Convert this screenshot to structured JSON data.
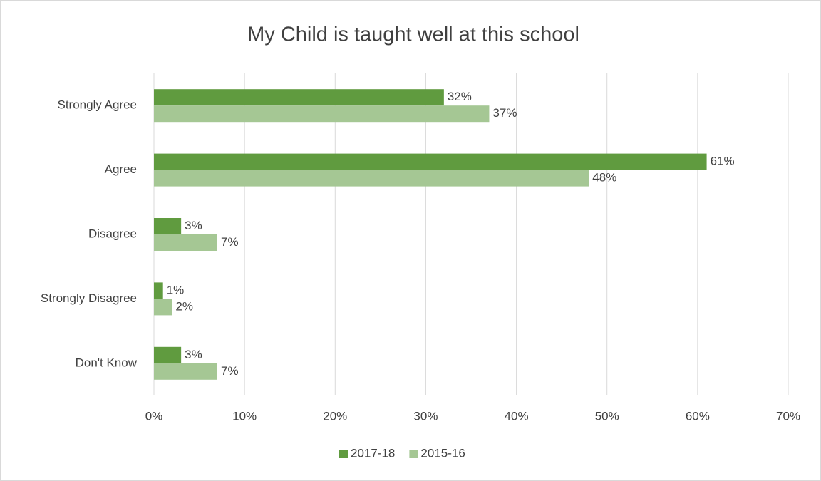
{
  "chart_data": {
    "type": "bar",
    "orientation": "horizontal",
    "title": "My Child is taught well at this school",
    "categories": [
      "Strongly Agree",
      "Agree",
      "Disagree",
      "Strongly Disagree",
      "Don't Know"
    ],
    "series": [
      {
        "name": "2017-18",
        "color": "#609b3f",
        "values": [
          32,
          61,
          3,
          1,
          3
        ],
        "value_labels": [
          "32%",
          "61%",
          "3%",
          "1%",
          "3%"
        ]
      },
      {
        "name": "2015-16",
        "color": "#a5c794",
        "values": [
          37,
          48,
          7,
          2,
          7
        ],
        "value_labels": [
          "37%",
          "48%",
          "7%",
          "2%",
          "7%"
        ]
      }
    ],
    "xlim": [
      0,
      70
    ],
    "xticks": [
      {
        "value": 0,
        "label": "0%"
      },
      {
        "value": 10,
        "label": "10%"
      },
      {
        "value": 20,
        "label": "20%"
      },
      {
        "value": 30,
        "label": "30%"
      },
      {
        "value": 40,
        "label": "40%"
      },
      {
        "value": 50,
        "label": "50%"
      },
      {
        "value": 60,
        "label": "60%"
      },
      {
        "value": 70,
        "label": "70%"
      }
    ],
    "grid": true,
    "legend": "bottom"
  }
}
